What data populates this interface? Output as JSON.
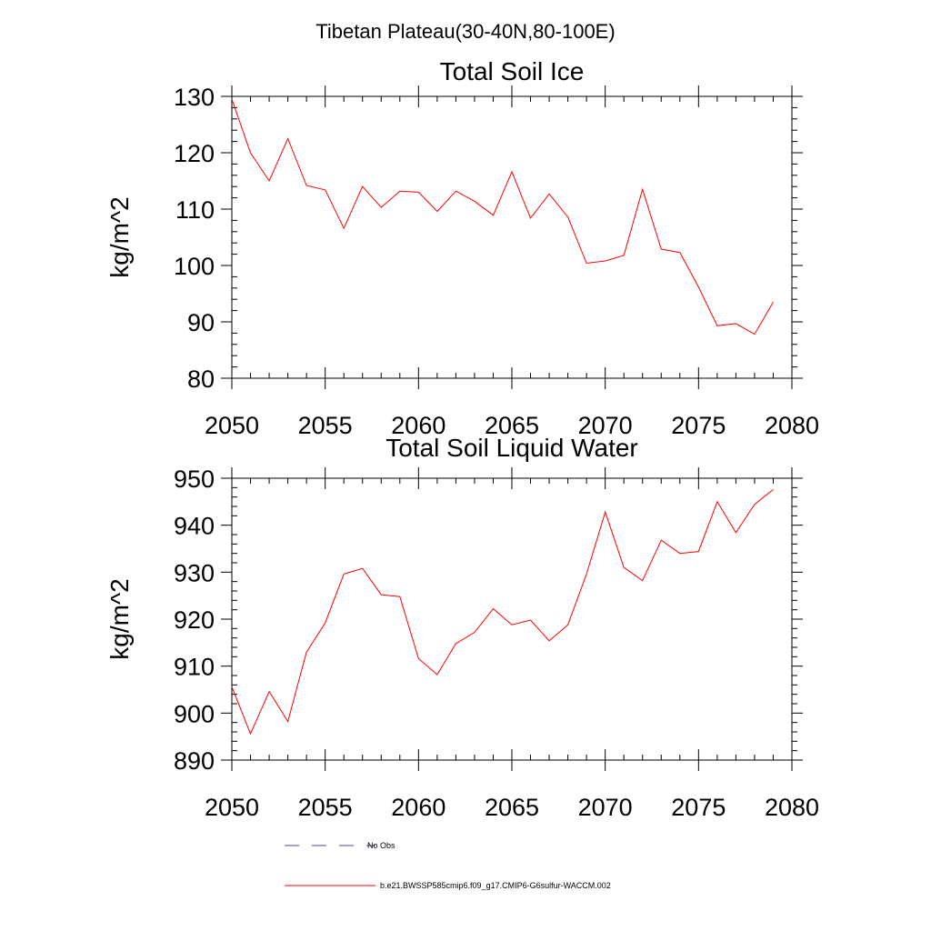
{
  "figure": {
    "title": "Tibetan Plateau(30-40N,80-100E)"
  },
  "chart_data": [
    {
      "type": "line",
      "title": "Total Soil Ice",
      "xlabel": "",
      "ylabel": "kg/m^2",
      "xlim": [
        2050,
        2080
      ],
      "ylim": [
        80,
        130
      ],
      "x_ticks": [
        2050,
        2055,
        2060,
        2065,
        2070,
        2075,
        2080
      ],
      "y_ticks": [
        80,
        90,
        100,
        110,
        120,
        130
      ],
      "x_minor_step": 1,
      "y_minor_step": 2,
      "grid": false,
      "series": [
        {
          "name": "b.e21.BWSSP585cmip6.f09_g17.CMIP6-G6sulfur-WACCM.002",
          "color": "#ff0000",
          "x": [
            2050,
            2051,
            2052,
            2053,
            2054,
            2055,
            2056,
            2057,
            2058,
            2059,
            2060,
            2061,
            2062,
            2063,
            2064,
            2065,
            2066,
            2067,
            2068,
            2069,
            2070,
            2071,
            2072,
            2073,
            2074,
            2075,
            2076,
            2077,
            2078,
            2079
          ],
          "values": [
            129.5,
            120.0,
            115.0,
            122.5,
            114.2,
            113.4,
            106.6,
            114.0,
            110.3,
            113.2,
            113.0,
            109.6,
            113.2,
            111.4,
            108.9,
            116.6,
            108.4,
            112.7,
            108.6,
            100.4,
            100.8,
            101.8,
            113.5,
            102.9,
            102.3,
            96.2,
            89.3,
            89.7,
            87.8,
            93.5
          ]
        }
      ]
    },
    {
      "type": "line",
      "title": "Total Soil Liquid Water",
      "xlabel": "",
      "ylabel": "kg/m^2",
      "xlim": [
        2050,
        2080
      ],
      "ylim": [
        890,
        950
      ],
      "x_ticks": [
        2050,
        2055,
        2060,
        2065,
        2070,
        2075,
        2080
      ],
      "y_ticks": [
        890,
        900,
        910,
        920,
        930,
        940,
        950
      ],
      "x_minor_step": 1,
      "y_minor_step": 2,
      "grid": false,
      "series": [
        {
          "name": "b.e21.BWSSP585cmip6.f09_g17.CMIP6-G6sulfur-WACCM.002",
          "color": "#ff0000",
          "x": [
            2050,
            2051,
            2052,
            2053,
            2054,
            2055,
            2056,
            2057,
            2058,
            2059,
            2060,
            2061,
            2062,
            2063,
            2064,
            2065,
            2066,
            2067,
            2068,
            2069,
            2070,
            2071,
            2072,
            2073,
            2074,
            2075,
            2076,
            2077,
            2078,
            2079
          ],
          "values": [
            905.6,
            895.6,
            904.6,
            898.2,
            913.0,
            919.2,
            929.6,
            930.8,
            925.2,
            924.8,
            911.6,
            908.2,
            914.8,
            917.2,
            922.2,
            918.8,
            919.8,
            915.4,
            918.8,
            929.6,
            942.8,
            931.0,
            928.2,
            936.8,
            934.0,
            934.4,
            945.0,
            938.4,
            944.4,
            947.6
          ]
        }
      ]
    }
  ],
  "legend": {
    "placement": "bottom",
    "items": [
      {
        "label": "No Obs",
        "style": "dashed",
        "color": "#4a4a8a"
      },
      {
        "label": "b.e21.BWSSP585cmip6.f09_g17.CMIP6-G6sulfur-WACCM.002",
        "style": "solid",
        "color": "#ff0000"
      }
    ]
  }
}
